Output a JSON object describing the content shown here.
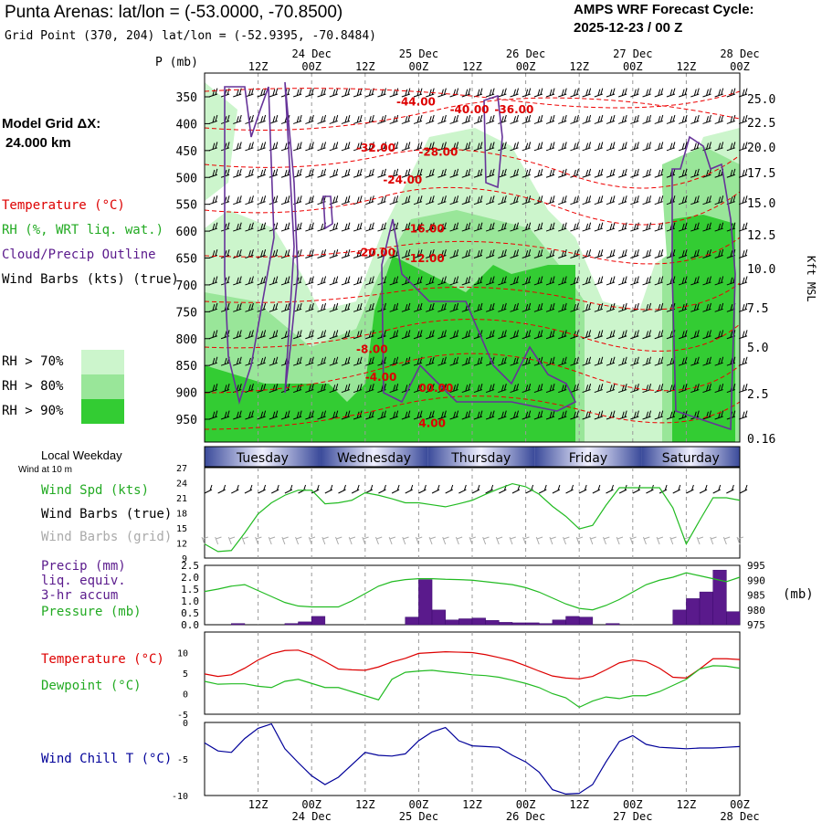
{
  "header": {
    "title": "Punta Arenas:  lat/lon = (-53.0000, -70.8500)",
    "gridpoint": "Grid Point (370, 204) lat/lon = (-52.9395, -70.8484)",
    "cycle_label": "AMPS WRF Forecast Cycle:",
    "cycle_value": "2025-12-23 / 00  Z"
  },
  "model_grid": {
    "label": "Model Grid ΔX:",
    "value": "24.000 km"
  },
  "legend": {
    "temperature": "Temperature (°C)",
    "rh": "RH (%, WRT liq. wat.)",
    "cloud": "Cloud/Precip Outline",
    "wind_barbs": "Wind Barbs (kts) (true)",
    "rh70": "RH > 70%",
    "rh80": "RH > 80%",
    "rh90": "RH > 90%"
  },
  "colors": {
    "rh70": "#ccf5cc",
    "rh80": "#99e699",
    "rh90": "#33cc33",
    "temperature": "#ee0000",
    "cloud": "#663399",
    "green": "#22bb22",
    "red": "#dd0000",
    "blue": "#000099",
    "purple": "#5a1a8c",
    "band_dark": "#3a4a9a",
    "band_light": "#f0f0ff"
  },
  "time_axis": {
    "p_label": "P (mb)",
    "hour_labels": [
      "12Z",
      "00Z",
      "12Z",
      "00Z",
      "12Z",
      "00Z",
      "12Z",
      "00Z",
      "12Z",
      "00Z"
    ],
    "hours": [
      12,
      24,
      36,
      48,
      60,
      72,
      84,
      96,
      108,
      120
    ],
    "date_labels": [
      "24 Dec",
      "25 Dec",
      "26 Dec",
      "27 Dec",
      "28 Dec"
    ],
    "date_hours": [
      24,
      48,
      72,
      96,
      120
    ]
  },
  "cross_section": {
    "pressure_ticks": [
      350,
      400,
      450,
      500,
      550,
      600,
      650,
      700,
      750,
      800,
      850,
      900,
      950
    ],
    "kft_ticks": [
      "25.0",
      "22.5",
      "20.0",
      "17.5",
      "15.0",
      "12.5",
      "10.0",
      "7.5",
      "5.0",
      "2.5",
      "0.16"
    ],
    "kft_label": "Kft MSL",
    "temp_labels": [
      {
        "text": "-44.00",
        "h": 43,
        "p": 359
      },
      {
        "text": "-40.00",
        "h": 55,
        "p": 374
      },
      {
        "text": "-36.00",
        "h": 65,
        "p": 374
      },
      {
        "text": "-32.00",
        "h": 34,
        "p": 445
      },
      {
        "text": "-28.00",
        "h": 48,
        "p": 453
      },
      {
        "text": "-24.00",
        "h": 40,
        "p": 505
      },
      {
        "text": "-16.00",
        "h": 45,
        "p": 596
      },
      {
        "text": "-20.00",
        "h": 34,
        "p": 640
      },
      {
        "text": "-12.00",
        "h": 45,
        "p": 651
      },
      {
        "text": "-8.00",
        "h": 34,
        "p": 820
      },
      {
        "text": "-4.00",
        "h": 36,
        "p": 872
      },
      {
        "text": "00.00",
        "h": 48,
        "p": 892
      },
      {
        "text": "4.00",
        "h": 48,
        "p": 958
      }
    ]
  },
  "weekdays": [
    {
      "name": "Tuesday",
      "h0": 0,
      "h1": 26
    },
    {
      "name": "Wednesday",
      "h0": 26,
      "h1": 50
    },
    {
      "name": "Thursday",
      "h0": 50,
      "h1": 74
    },
    {
      "name": "Friday",
      "h0": 74,
      "h1": 98
    },
    {
      "name": "Saturday",
      "h0": 98,
      "h1": 120
    }
  ],
  "weekday_title": "Local Weekday",
  "wind_panel": {
    "subtitle": "Wind at 10 m",
    "label_speed": "Wind Spd (kts)",
    "label_barbs_true": "Wind Barbs (true)",
    "label_barbs_grid": "Wind Barbs (grid)",
    "y_ticks": [
      "27",
      "24",
      "21",
      "18",
      "15",
      "12",
      "9"
    ]
  },
  "precip_panel": {
    "label_precip": "Precip (mm)",
    "label_liq": "liq. equiv.",
    "label_accum": "3-hr accum",
    "label_pressure": "Pressure (mb)",
    "left_ticks": [
      "2.5",
      "2.0",
      "1.5",
      "1.0",
      "0.5",
      "0.0"
    ],
    "right_ticks": [
      "995",
      "990",
      "985",
      "980",
      "975"
    ],
    "unit_right": "(mb)"
  },
  "temp_panel": {
    "label_temp": "Temperature (°C)",
    "label_dew": "Dewpoint (°C)",
    "y_ticks": [
      "10",
      "5",
      "0",
      "-5"
    ]
  },
  "chill_panel": {
    "label": "Wind Chill T (°C)",
    "y_ticks": [
      "0",
      "-5",
      "-10"
    ]
  },
  "chart_data": [
    {
      "type": "line",
      "title": "Wind Speed at 10 m",
      "ylabel": "Wind Spd (kts)",
      "ylim": [
        9,
        27
      ],
      "x_hours": [
        0,
        3,
        6,
        9,
        12,
        15,
        18,
        21,
        24,
        27,
        30,
        33,
        36,
        39,
        42,
        45,
        48,
        51,
        54,
        57,
        60,
        63,
        66,
        69,
        72,
        75,
        78,
        81,
        84,
        87,
        90,
        93,
        96,
        99,
        102,
        105,
        108,
        111,
        114,
        117,
        120
      ],
      "values": [
        11.8,
        10.3,
        10.5,
        14,
        17.8,
        20,
        21.5,
        22.5,
        22.5,
        19.8,
        20,
        20.5,
        22,
        21.5,
        20.8,
        20,
        20,
        19.6,
        19.2,
        19.8,
        20.5,
        21.7,
        22.8,
        23.8,
        23.2,
        21.7,
        19.3,
        17.3,
        14.8,
        15.5,
        19.5,
        23,
        23,
        23,
        23,
        19,
        11.8,
        16.5,
        21,
        21,
        20.5
      ]
    },
    {
      "type": "bar",
      "title": "Precip (mm) liq. equiv. 3-hr accum",
      "ylabel": "Precip (mm)",
      "ylim": [
        0,
        2.5
      ],
      "bar_hours": [
        0,
        3,
        6,
        9,
        12,
        15,
        18,
        21,
        24,
        27,
        30,
        33,
        36,
        39,
        42,
        45,
        48,
        51,
        54,
        57,
        60,
        63,
        66,
        69,
        72,
        75,
        78,
        81,
        84,
        87,
        90,
        93,
        96,
        99,
        102,
        105,
        108,
        111,
        114,
        117
      ],
      "values": [
        0,
        0,
        0.05,
        0,
        0,
        0,
        0.05,
        0.12,
        0.35,
        0,
        0,
        0,
        0,
        0,
        0,
        0.32,
        1.9,
        0.62,
        0.2,
        0.25,
        0.28,
        0.18,
        0.1,
        0.08,
        0.08,
        0.05,
        0.2,
        0.35,
        0.32,
        0,
        0.05,
        0,
        0,
        0,
        0,
        0.62,
        1.1,
        1.38,
        2.3,
        0.55
      ]
    },
    {
      "type": "line",
      "title": "Pressure (mb)",
      "ylabel": "Pressure (mb)",
      "ylim": [
        975,
        995
      ],
      "x_hours": [
        0,
        3,
        6,
        9,
        12,
        15,
        18,
        21,
        24,
        27,
        30,
        33,
        36,
        39,
        42,
        45,
        48,
        51,
        54,
        57,
        60,
        63,
        66,
        69,
        72,
        75,
        78,
        81,
        84,
        87,
        90,
        93,
        96,
        99,
        102,
        105,
        108,
        111,
        114,
        117,
        120
      ],
      "values": [
        986.2,
        987,
        988,
        988.5,
        986.5,
        984.5,
        982.5,
        981.3,
        981,
        981,
        981,
        983,
        985.5,
        988,
        989.5,
        990.2,
        990.5,
        990.5,
        990.3,
        990.2,
        990,
        989.5,
        989,
        988.5,
        987.5,
        986,
        984,
        982,
        980.5,
        980,
        981.5,
        983.5,
        986,
        988.5,
        990,
        991,
        992.5,
        991.5,
        990.5,
        989.5,
        991
      ]
    },
    {
      "type": "line",
      "title": "Temperature and Dewpoint",
      "ylabel": "°C",
      "ylim": [
        -5,
        15
      ],
      "x_hours": [
        0,
        3,
        6,
        9,
        12,
        15,
        18,
        21,
        24,
        27,
        30,
        33,
        36,
        39,
        42,
        45,
        48,
        51,
        54,
        57,
        60,
        63,
        66,
        69,
        72,
        75,
        78,
        81,
        84,
        87,
        90,
        93,
        96,
        99,
        102,
        105,
        108,
        111,
        114,
        117,
        120
      ],
      "series": [
        {
          "name": "Temperature",
          "values": [
            4.8,
            4.2,
            4.6,
            6.2,
            8.2,
            9.7,
            10.5,
            10.6,
            9.5,
            7.8,
            6,
            5.8,
            5.7,
            6.5,
            7.7,
            8.6,
            9.8,
            10,
            10.2,
            10.1,
            10,
            9.5,
            8.8,
            8,
            6.8,
            5.5,
            4.3,
            3.8,
            3.6,
            4.2,
            5.8,
            7.5,
            8.2,
            7.8,
            6.2,
            4,
            3.8,
            6,
            8.5,
            8.5,
            8.3
          ]
        },
        {
          "name": "Dewpoint",
          "values": [
            3,
            2.3,
            2.4,
            2.4,
            1.8,
            1.5,
            3,
            3.5,
            2.5,
            1.5,
            1.5,
            0.5,
            -0.5,
            -1.5,
            3.5,
            5.2,
            5.5,
            5.7,
            5.3,
            5,
            4.6,
            4.4,
            4,
            3.3,
            2.5,
            1.5,
            0,
            -1,
            -3.3,
            -1.8,
            -0.8,
            -1.2,
            -0.5,
            -0.5,
            0.5,
            2,
            3.5,
            6,
            6.8,
            6.7,
            6.2
          ]
        }
      ]
    },
    {
      "type": "line",
      "title": "Wind Chill T (°C)",
      "ylabel": "Wind Chill T (°C)",
      "ylim": [
        -10,
        0
      ],
      "x_hours": [
        0,
        3,
        6,
        9,
        12,
        15,
        18,
        21,
        24,
        27,
        30,
        33,
        36,
        39,
        42,
        45,
        48,
        51,
        54,
        57,
        60,
        63,
        66,
        69,
        72,
        75,
        78,
        81,
        84,
        87,
        90,
        93,
        96,
        99,
        102,
        105,
        108,
        111,
        114,
        117,
        120
      ],
      "values": [
        -2.8,
        -3.9,
        -4.1,
        -2.2,
        -0.8,
        -0.2,
        -3.6,
        -5.5,
        -7.3,
        -8.5,
        -7.5,
        -5.8,
        -4.1,
        -4.5,
        -4.6,
        -4.3,
        -2.5,
        -1.3,
        -0.7,
        -2.5,
        -3.2,
        -3.3,
        -3.4,
        -4.5,
        -5.4,
        -6.8,
        -9.2,
        -9.8,
        -9.7,
        -8.5,
        -5.4,
        -2.6,
        -1.8,
        -3,
        -3.4,
        -3.5,
        -3.6,
        -3.5,
        -3.5,
        -3.4,
        -3.3
      ]
    }
  ]
}
